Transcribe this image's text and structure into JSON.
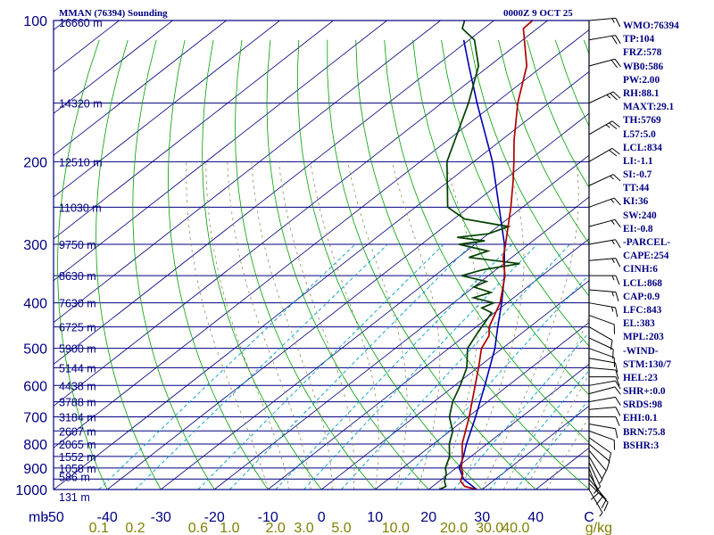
{
  "header": {
    "title": "MMAN (76394) Sounding",
    "datetime": "0000Z  9 OCT 25"
  },
  "indices": [
    "WMO:76394",
    "TP:104",
    "FRZ:578",
    "WB0:586",
    "PW:2.00",
    "RH:88.1",
    "MAXT:29.1",
    "TH:5769",
    "L57:5.0",
    "LCL:834",
    "LI:-1.1",
    "SI:-0.7",
    "TT:44",
    "KI:36",
    "SW:240",
    "EI:-0.8",
    "-PARCEL-",
    "CAPE:254",
    "CINH:6",
    "LCL:868",
    "CAP:0.9",
    "LFC:843",
    "EL:383",
    "MPL:203",
    "-WIND-",
    "STM:130/7",
    "HEL:23",
    "SHR+:0.0",
    "SRDS:98",
    "EHI:0.1",
    "BRN:75.8",
    "BSHR:3"
  ],
  "colors": {
    "frame": "#000080",
    "isobar": "#000080",
    "isotherm": "#000080",
    "dry_adiabat": "#00a000",
    "moist_adiabat": "#909060",
    "mixing_ratio": "#00a0c0",
    "temperature": "#b00000",
    "dewpoint": "#004000",
    "parcel": "#0000b0",
    "wind_barb": "#000000",
    "mixing_label": "#808000"
  },
  "chart_data": {
    "type": "line",
    "subtype": "skew-t log-p sounding",
    "xlabel_units": "mb",
    "mixing_units": "g/kg",
    "p_range": [
      1000,
      100
    ],
    "t_ticks": [
      -50,
      -40,
      -30,
      -20,
      -10,
      0,
      10,
      20,
      30,
      40
    ],
    "t_tick_labels": [
      "-50",
      "-40",
      "-30",
      "-20",
      "-10",
      "0",
      "10",
      "20",
      "30",
      "40",
      "C"
    ],
    "mixing_labels": [
      "0.1",
      "0.2",
      "0.6",
      "1.0",
      "2.0",
      "3.0",
      "5.0",
      "10.0",
      "20.0",
      "30.0",
      "40.0"
    ],
    "mixing_values": [
      0.1,
      0.2,
      0.6,
      1.0,
      2.0,
      3.0,
      5.0,
      10.0,
      20.0,
      30.0,
      40.0
    ],
    "pressure_labels": [
      {
        "p": 100,
        "label": "100"
      },
      {
        "p": 200,
        "label": "200"
      },
      {
        "p": 300,
        "label": "300"
      },
      {
        "p": 400,
        "label": "400"
      },
      {
        "p": 500,
        "label": "500"
      },
      {
        "p": 600,
        "label": "600"
      },
      {
        "p": 700,
        "label": "700"
      },
      {
        "p": 800,
        "label": "800"
      },
      {
        "p": 900,
        "label": "900"
      },
      {
        "p": 1000,
        "label": "1000"
      }
    ],
    "height_labels": [
      {
        "p": 100,
        "label": "16660 m"
      },
      {
        "p": 150,
        "label": "14320 m"
      },
      {
        "p": 200,
        "label": "12510 m"
      },
      {
        "p": 250,
        "label": "11030 m"
      },
      {
        "p": 300,
        "label": "9750 m"
      },
      {
        "p": 350,
        "label": "8630 m"
      },
      {
        "p": 400,
        "label": "7630 m"
      },
      {
        "p": 450,
        "label": "6725 m"
      },
      {
        "p": 500,
        "label": "5900 m"
      },
      {
        "p": 550,
        "label": "5144 m"
      },
      {
        "p": 600,
        "label": "4438 m"
      },
      {
        "p": 650,
        "label": "3788 m"
      },
      {
        "p": 700,
        "label": "3184 m"
      },
      {
        "p": 750,
        "label": "2607 m"
      },
      {
        "p": 800,
        "label": "2065 m"
      },
      {
        "p": 850,
        "label": "1552 m"
      },
      {
        "p": 900,
        "label": "1058 m"
      },
      {
        "p": 950,
        "label": "586 m"
      },
      {
        "p": 1000,
        "label": "131 m"
      }
    ],
    "temperature": [
      {
        "p": 1000,
        "t": 29.0
      },
      {
        "p": 985,
        "t": 26.0
      },
      {
        "p": 960,
        "t": 24.0
      },
      {
        "p": 925,
        "t": 22.6
      },
      {
        "p": 900,
        "t": 21.0
      },
      {
        "p": 850,
        "t": 18.4
      },
      {
        "p": 800,
        "t": 15.4
      },
      {
        "p": 700,
        "t": 10.2
      },
      {
        "p": 600,
        "t": 3.8
      },
      {
        "p": 550,
        "t": 0.2
      },
      {
        "p": 500,
        "t": -3.9
      },
      {
        "p": 470,
        "t": -5.5
      },
      {
        "p": 450,
        "t": -7.6
      },
      {
        "p": 400,
        "t": -11.3
      },
      {
        "p": 350,
        "t": -16.9
      },
      {
        "p": 320,
        "t": -21.6
      },
      {
        "p": 300,
        "t": -24.3
      },
      {
        "p": 250,
        "t": -32.2
      },
      {
        "p": 220,
        "t": -38.0
      },
      {
        "p": 200,
        "t": -42.5
      },
      {
        "p": 180,
        "t": -47.6
      },
      {
        "p": 150,
        "t": -55.8
      },
      {
        "p": 125,
        "t": -63.0
      },
      {
        "p": 104,
        "t": -72.6
      },
      {
        "p": 100,
        "t": -72.8
      }
    ],
    "dewpoint": [
      {
        "p": 1000,
        "t": 22.0
      },
      {
        "p": 985,
        "t": 22.5
      },
      {
        "p": 960,
        "t": 21.0
      },
      {
        "p": 925,
        "t": 19.5
      },
      {
        "p": 900,
        "t": 18.0
      },
      {
        "p": 850,
        "t": 16.0
      },
      {
        "p": 800,
        "t": 13.0
      },
      {
        "p": 750,
        "t": 10.5
      },
      {
        "p": 700,
        "t": 6.5
      },
      {
        "p": 650,
        "t": 3.5
      },
      {
        "p": 600,
        "t": 1.0
      },
      {
        "p": 550,
        "t": -2.0
      },
      {
        "p": 500,
        "t": -6.5
      },
      {
        "p": 470,
        "t": -8.0
      },
      {
        "p": 450,
        "t": -9.0
      },
      {
        "p": 420,
        "t": -10.5
      },
      {
        "p": 410,
        "t": -13.5
      },
      {
        "p": 400,
        "t": -12.5
      },
      {
        "p": 390,
        "t": -17.5
      },
      {
        "p": 380,
        "t": -15.5
      },
      {
        "p": 370,
        "t": -20.0
      },
      {
        "p": 360,
        "t": -19.0
      },
      {
        "p": 350,
        "t": -25.0
      },
      {
        "p": 340,
        "t": -22.5
      },
      {
        "p": 330,
        "t": -17.0
      },
      {
        "p": 320,
        "t": -28.0
      },
      {
        "p": 310,
        "t": -26.0
      },
      {
        "p": 300,
        "t": -33.0
      },
      {
        "p": 295,
        "t": -29.0
      },
      {
        "p": 290,
        "t": -35.0
      },
      {
        "p": 285,
        "t": -30.0
      },
      {
        "p": 275,
        "t": -28.0
      },
      {
        "p": 265,
        "t": -38.0
      },
      {
        "p": 250,
        "t": -44.0
      },
      {
        "p": 200,
        "t": -55.0
      },
      {
        "p": 150,
        "t": -65.0
      },
      {
        "p": 125,
        "t": -72.0
      },
      {
        "p": 110,
        "t": -79.0
      },
      {
        "p": 104,
        "t": -84.0
      },
      {
        "p": 100,
        "t": -85.5
      }
    ],
    "parcel": [
      {
        "p": 1000,
        "t": 29.0
      },
      {
        "p": 950,
        "t": 24.0
      },
      {
        "p": 900,
        "t": 20.6
      },
      {
        "p": 850,
        "t": 18.6
      },
      {
        "p": 800,
        "t": 16.2
      },
      {
        "p": 700,
        "t": 11.4
      },
      {
        "p": 600,
        "t": 5.6
      },
      {
        "p": 500,
        "t": -1.4
      },
      {
        "p": 450,
        "t": -6.0
      },
      {
        "p": 400,
        "t": -11.0
      },
      {
        "p": 350,
        "t": -17.0
      },
      {
        "p": 300,
        "t": -24.5
      },
      {
        "p": 250,
        "t": -34.4
      },
      {
        "p": 200,
        "t": -46.5
      },
      {
        "p": 150,
        "t": -63.4
      },
      {
        "p": 125,
        "t": -73.8
      },
      {
        "p": 110,
        "t": -81.0
      }
    ],
    "barbs": [
      {
        "p": 1000,
        "dir": 150,
        "spd": 5
      },
      {
        "p": 970,
        "dir": 135,
        "spd": 10
      },
      {
        "p": 950,
        "dir": 140,
        "spd": 10
      },
      {
        "p": 925,
        "dir": 150,
        "spd": 10
      },
      {
        "p": 900,
        "dir": 160,
        "spd": 10
      },
      {
        "p": 875,
        "dir": 155,
        "spd": 10
      },
      {
        "p": 850,
        "dir": 150,
        "spd": 5
      },
      {
        "p": 825,
        "dir": 140,
        "spd": 10
      },
      {
        "p": 800,
        "dir": 130,
        "spd": 10
      },
      {
        "p": 775,
        "dir": 125,
        "spd": 10
      },
      {
        "p": 750,
        "dir": 110,
        "spd": 10
      },
      {
        "p": 725,
        "dir": 100,
        "spd": 10
      },
      {
        "p": 700,
        "dir": 90,
        "spd": 10
      },
      {
        "p": 675,
        "dir": 85,
        "spd": 10
      },
      {
        "p": 650,
        "dir": 80,
        "spd": 10
      },
      {
        "p": 625,
        "dir": 75,
        "spd": 10
      },
      {
        "p": 600,
        "dir": 80,
        "spd": 10
      },
      {
        "p": 575,
        "dir": 90,
        "spd": 10
      },
      {
        "p": 550,
        "dir": 95,
        "spd": 10
      },
      {
        "p": 525,
        "dir": 100,
        "spd": 10
      },
      {
        "p": 500,
        "dir": 110,
        "spd": 10
      },
      {
        "p": 475,
        "dir": 115,
        "spd": 10
      },
      {
        "p": 450,
        "dir": 120,
        "spd": 10
      },
      {
        "p": 425,
        "dir": 110,
        "spd": 10
      },
      {
        "p": 400,
        "dir": 100,
        "spd": 15
      },
      {
        "p": 375,
        "dir": 95,
        "spd": 15
      },
      {
        "p": 350,
        "dir": 90,
        "spd": 15
      },
      {
        "p": 325,
        "dir": 85,
        "spd": 15
      },
      {
        "p": 300,
        "dir": 80,
        "spd": 15
      },
      {
        "p": 275,
        "dir": 75,
        "spd": 15
      },
      {
        "p": 250,
        "dir": 70,
        "spd": 15
      },
      {
        "p": 225,
        "dir": 65,
        "spd": 15
      },
      {
        "p": 200,
        "dir": 60,
        "spd": 20
      },
      {
        "p": 175,
        "dir": 60,
        "spd": 25
      },
      {
        "p": 150,
        "dir": 65,
        "spd": 25
      },
      {
        "p": 125,
        "dir": 75,
        "spd": 20
      },
      {
        "p": 110,
        "dir": 80,
        "spd": 20
      },
      {
        "p": 100,
        "dir": 85,
        "spd": 15
      }
    ]
  }
}
